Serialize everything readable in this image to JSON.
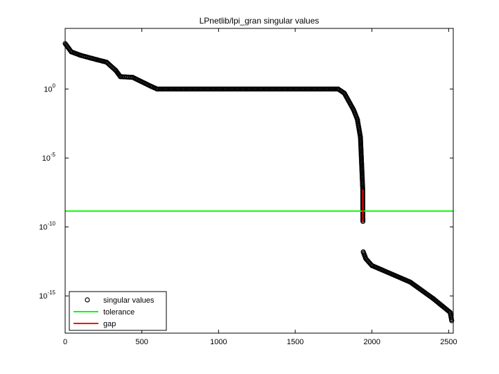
{
  "chart_data": {
    "type": "scatter",
    "title": "LPnetlib/lpi_gran singular values",
    "xlabel": "",
    "ylabel": "",
    "xlim": [
      0,
      2530
    ],
    "ylim_log10": [
      -17.7,
      4.4
    ],
    "y_scale": "log",
    "x_ticks": [
      0,
      500,
      1000,
      1500,
      2000,
      2500
    ],
    "y_ticks": [
      {
        "base": "10",
        "exp": "0"
      },
      {
        "base": "10",
        "exp": "-5"
      },
      {
        "base": "10",
        "exp": "-10"
      },
      {
        "base": "10",
        "exp": "-15"
      }
    ],
    "y_tick_exponents": [
      0,
      -5,
      -10,
      -15
    ],
    "grid": false,
    "legend_position": "bottom-left",
    "legend": [
      {
        "label": "singular values",
        "marker": "circle",
        "color": "#000000"
      },
      {
        "label": "tolerance",
        "marker": "line",
        "color": "#00ff00"
      },
      {
        "label": "gap",
        "marker": "line",
        "color": "#ff0000"
      }
    ],
    "series": [
      {
        "name": "singular values",
        "color": "#000000",
        "marker": "open-circle",
        "segments_log10": [
          {
            "x0": 0,
            "x1": 40,
            "y0": 3.3,
            "y1": 2.7
          },
          {
            "x0": 40,
            "x1": 100,
            "y0": 2.7,
            "y1": 2.45
          },
          {
            "x0": 100,
            "x1": 200,
            "y0": 2.45,
            "y1": 2.15
          },
          {
            "x0": 200,
            "x1": 270,
            "y0": 2.15,
            "y1": 1.95
          },
          {
            "x0": 270,
            "x1": 330,
            "y0": 1.95,
            "y1": 1.35
          },
          {
            "x0": 330,
            "x1": 360,
            "y0": 1.35,
            "y1": 0.9
          },
          {
            "x0": 360,
            "x1": 440,
            "y0": 0.9,
            "y1": 0.85
          },
          {
            "x0": 440,
            "x1": 560,
            "y0": 0.85,
            "y1": 0.2
          },
          {
            "x0": 560,
            "x1": 600,
            "y0": 0.2,
            "y1": 0.0
          },
          {
            "x0": 600,
            "x1": 1780,
            "y0": 0.0,
            "y1": 0.0
          },
          {
            "x0": 1780,
            "x1": 1820,
            "y0": 0.0,
            "y1": -0.3
          },
          {
            "x0": 1820,
            "x1": 1880,
            "y0": -0.3,
            "y1": -1.5
          },
          {
            "x0": 1880,
            "x1": 1905,
            "y0": -1.5,
            "y1": -2.2
          },
          {
            "x0": 1905,
            "x1": 1925,
            "y0": -2.2,
            "y1": -3.5
          },
          {
            "x0": 1925,
            "x1": 1940,
            "y0": -3.5,
            "y1": -7.3
          },
          {
            "x0": 1940,
            "x1": 1941,
            "y0": -7.3,
            "y1": -9.6
          },
          {
            "x0": 1943,
            "x1": 1960,
            "y0": -11.8,
            "y1": -12.3
          },
          {
            "x0": 1960,
            "x1": 2000,
            "y0": -12.3,
            "y1": -12.8
          },
          {
            "x0": 2000,
            "x1": 2250,
            "y0": -12.8,
            "y1": -14.0
          },
          {
            "x0": 2250,
            "x1": 2400,
            "y0": -14.0,
            "y1": -15.2
          },
          {
            "x0": 2400,
            "x1": 2510,
            "y0": -15.2,
            "y1": -16.2
          },
          {
            "x0": 2510,
            "x1": 2520,
            "y0": -16.2,
            "y1": -16.8
          }
        ]
      },
      {
        "name": "tolerance",
        "color": "#00ff00",
        "type": "hline",
        "y_log10": -8.85
      },
      {
        "name": "gap",
        "color": "#ff0000",
        "type": "vline",
        "x": 1941,
        "y0_log10": -7.3,
        "y1_log10": -9.6
      }
    ]
  }
}
